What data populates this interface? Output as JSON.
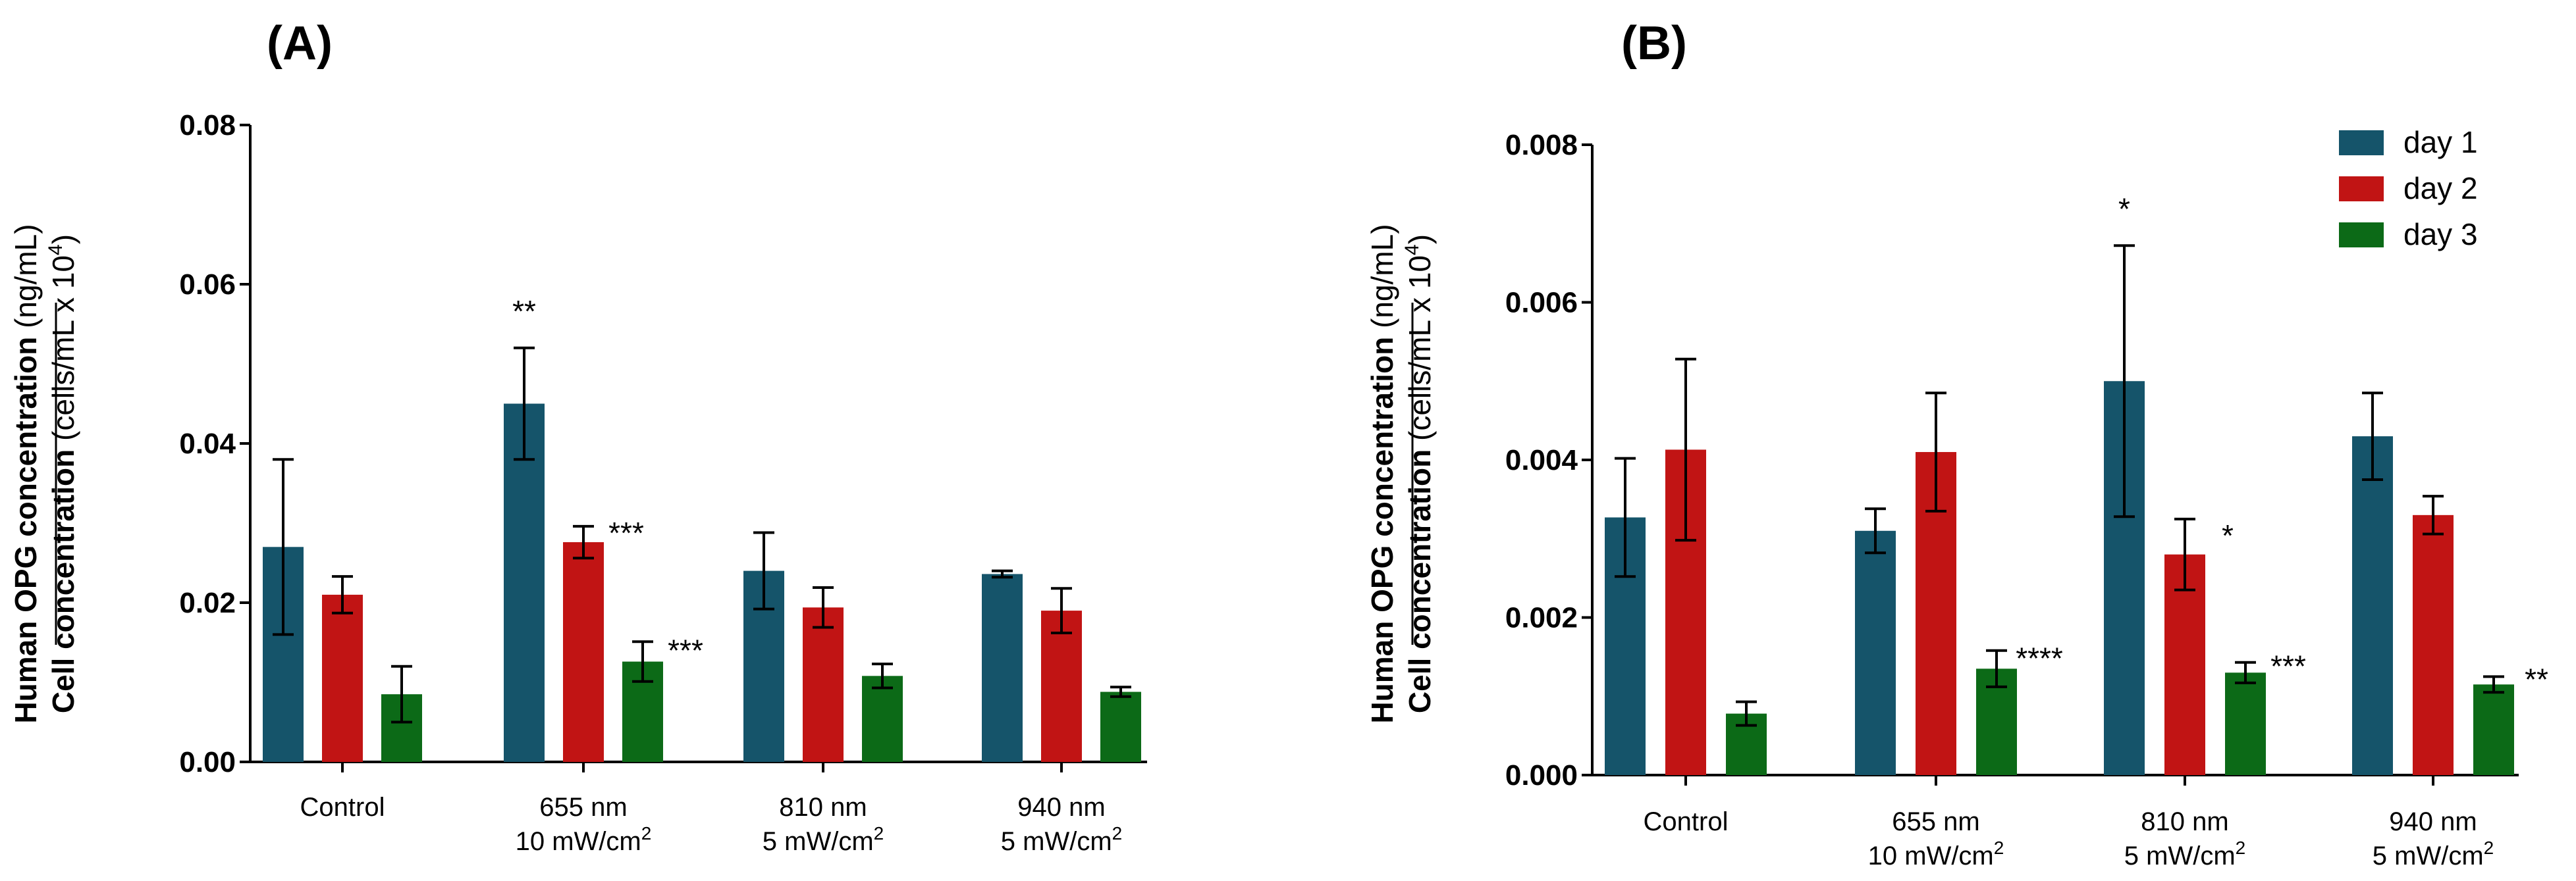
{
  "colors": {
    "day1": "#15546a",
    "day2": "#c11414",
    "day3": "#0c6a17"
  },
  "legend": [
    "day 1",
    "day 2",
    "day 3"
  ],
  "y_axis_label": {
    "line1_bold": "Human OPG concentration",
    "line1_norm": " (ng/mL)",
    "line2_bold": "Cell concentration",
    "line2_norm": " (cells/mL x 10",
    "line2_sup": "4",
    "line2_close": ")"
  },
  "chart_data": [
    {
      "panel": "(A)",
      "type": "bar",
      "categories": [
        {
          "line1": "Control",
          "line2": ""
        },
        {
          "line1": "655 nm",
          "line2": "10 mW/cm",
          "sup": "2"
        },
        {
          "line1": "810 nm",
          "line2": "5 mW/cm",
          "sup": "2"
        },
        {
          "line1": "940 nm",
          "line2": "5 mW/cm",
          "sup": "2"
        }
      ],
      "ylim": [
        0,
        0.08
      ],
      "yticks": [
        "0.00",
        "0.02",
        "0.04",
        "0.06",
        "0.08"
      ],
      "series": [
        {
          "name": "day 1",
          "values": [
            0.027,
            0.045,
            0.024,
            0.0236
          ],
          "errors": [
            0.011,
            0.007,
            0.0048,
            0.0004
          ],
          "sig": [
            "",
            "**",
            "",
            ""
          ]
        },
        {
          "name": "day 2",
          "values": [
            0.021,
            0.0276,
            0.0194,
            0.019
          ],
          "errors": [
            0.0023,
            0.002,
            0.0025,
            0.0028
          ],
          "sig": [
            "",
            "***",
            "",
            ""
          ]
        },
        {
          "name": "day 3",
          "values": [
            0.0085,
            0.0126,
            0.0108,
            0.0088
          ],
          "errors": [
            0.0035,
            0.0025,
            0.0015,
            0.0006
          ],
          "sig": [
            "",
            "***",
            "",
            ""
          ]
        }
      ]
    },
    {
      "panel": "(B)",
      "type": "bar",
      "categories": [
        {
          "line1": "Control",
          "line2": ""
        },
        {
          "line1": "655 nm",
          "line2": "10 mW/cm",
          "sup": "2"
        },
        {
          "line1": "810 nm",
          "line2": "5 mW/cm",
          "sup": "2"
        },
        {
          "line1": "940 nm",
          "line2": "5 mW/cm",
          "sup": "2"
        }
      ],
      "ylim": [
        0,
        0.008
      ],
      "yticks": [
        "0.000",
        "0.002",
        "0.004",
        "0.006",
        "0.008"
      ],
      "series": [
        {
          "name": "day 1",
          "values": [
            0.00327,
            0.0031,
            0.005,
            0.0043
          ],
          "errors": [
            0.00075,
            0.00028,
            0.00172,
            0.00055
          ],
          "sig": [
            "",
            "",
            "*",
            ""
          ]
        },
        {
          "name": "day 2",
          "values": [
            0.00413,
            0.0041,
            0.0028,
            0.0033
          ],
          "errors": [
            0.00115,
            0.00075,
            0.00045,
            0.00024
          ],
          "sig": [
            "",
            "",
            "*",
            ""
          ]
        },
        {
          "name": "day 3",
          "values": [
            0.00078,
            0.00135,
            0.0013,
            0.00115
          ],
          "errors": [
            0.00015,
            0.00023,
            0.00013,
            0.0001
          ],
          "sig": [
            "",
            "****",
            "***",
            "**"
          ]
        }
      ]
    }
  ]
}
